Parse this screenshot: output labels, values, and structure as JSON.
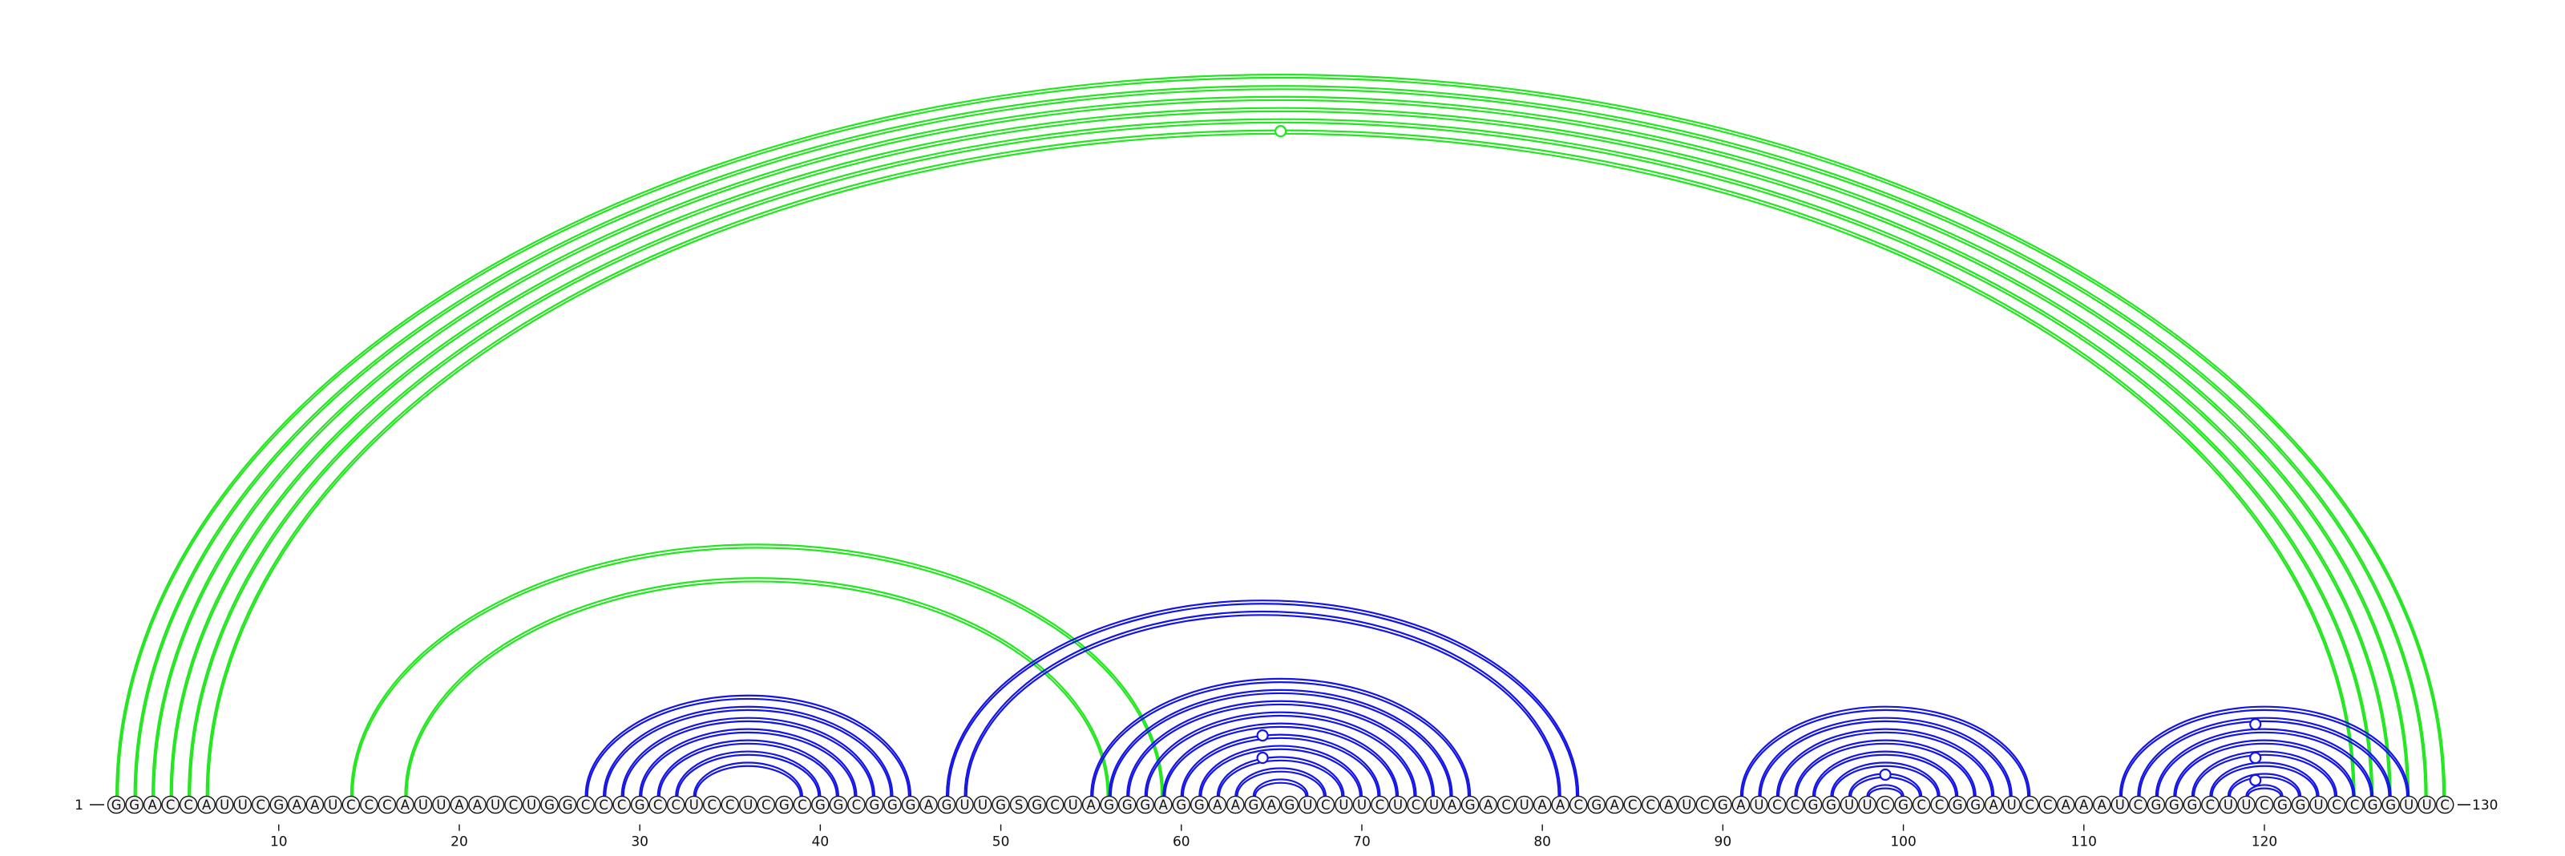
{
  "sequence": "GGACCAUUCGAAUCCCAUUAAUCUGGCCCGCCUCCUCGCGGCGGGAGUUGSGCUAGGGAGGAAGAGUCUUCUCUAGACUAACGACCAUCGAUCCGGUUCGCCGGAUCCAAAUCGGGCUUCGGUCCGGUUC",
  "start_label": "1",
  "end_label": "130",
  "ticks": [
    10,
    20,
    30,
    40,
    50,
    60,
    70,
    80,
    90,
    100,
    110,
    120
  ],
  "colors": {
    "green": "#22e61e",
    "blue": "#1414e6",
    "nucleotide_fill": "#f2f2f2",
    "nucleotide_stroke": "#111111",
    "text": "#111111"
  },
  "arcs": [
    {
      "i": 1,
      "j": 130,
      "color": "green"
    },
    {
      "i": 2,
      "j": 129,
      "color": "green"
    },
    {
      "i": 3,
      "j": 128,
      "color": "green"
    },
    {
      "i": 4,
      "j": 127,
      "color": "green"
    },
    {
      "i": 5,
      "j": 126,
      "color": "green"
    },
    {
      "i": 6,
      "j": 125,
      "color": "green"
    },
    {
      "i": 14,
      "j": 59,
      "color": "green"
    },
    {
      "i": 17,
      "j": 56,
      "color": "green"
    },
    {
      "i": 27,
      "j": 45,
      "color": "blue"
    },
    {
      "i": 28,
      "j": 44,
      "color": "blue"
    },
    {
      "i": 29,
      "j": 43,
      "color": "blue"
    },
    {
      "i": 30,
      "j": 42,
      "color": "blue"
    },
    {
      "i": 31,
      "j": 41,
      "color": "blue"
    },
    {
      "i": 32,
      "j": 40,
      "color": "blue"
    },
    {
      "i": 33,
      "j": 39,
      "color": "blue"
    },
    {
      "i": 47,
      "j": 82,
      "color": "blue"
    },
    {
      "i": 48,
      "j": 81,
      "color": "blue"
    },
    {
      "i": 55,
      "j": 76,
      "color": "blue"
    },
    {
      "i": 56,
      "j": 75,
      "color": "blue"
    },
    {
      "i": 57,
      "j": 74,
      "color": "blue"
    },
    {
      "i": 58,
      "j": 73,
      "color": "blue"
    },
    {
      "i": 59,
      "j": 72,
      "color": "blue"
    },
    {
      "i": 60,
      "j": 71,
      "color": "blue"
    },
    {
      "i": 61,
      "j": 70,
      "color": "blue"
    },
    {
      "i": 62,
      "j": 69,
      "color": "blue"
    },
    {
      "i": 63,
      "j": 68,
      "color": "blue"
    },
    {
      "i": 64,
      "j": 67,
      "color": "blue"
    },
    {
      "i": 91,
      "j": 107,
      "color": "blue"
    },
    {
      "i": 92,
      "j": 106,
      "color": "blue"
    },
    {
      "i": 93,
      "j": 105,
      "color": "blue"
    },
    {
      "i": 94,
      "j": 104,
      "color": "blue"
    },
    {
      "i": 95,
      "j": 103,
      "color": "blue"
    },
    {
      "i": 96,
      "j": 102,
      "color": "blue"
    },
    {
      "i": 97,
      "j": 101,
      "color": "blue"
    },
    {
      "i": 98,
      "j": 100,
      "color": "blue"
    },
    {
      "i": 112,
      "j": 128,
      "color": "blue"
    },
    {
      "i": 113,
      "j": 127,
      "color": "blue"
    },
    {
      "i": 114,
      "j": 126,
      "color": "blue"
    },
    {
      "i": 115,
      "j": 125,
      "color": "blue"
    },
    {
      "i": 116,
      "j": 124,
      "color": "blue"
    },
    {
      "i": 117,
      "j": 123,
      "color": "blue"
    },
    {
      "i": 118,
      "j": 122,
      "color": "blue"
    },
    {
      "i": 119,
      "j": 121,
      "color": "blue"
    }
  ],
  "markers": [
    {
      "i": 6,
      "j": 125,
      "color": "green"
    },
    {
      "i": 59,
      "j": 70,
      "color": "blue"
    },
    {
      "i": 61,
      "j": 68,
      "color": "blue"
    },
    {
      "i": 97,
      "j": 101,
      "color": "blue"
    },
    {
      "i": 113,
      "j": 126,
      "color": "blue"
    },
    {
      "i": 116,
      "j": 123,
      "color": "blue"
    },
    {
      "i": 118,
      "j": 121,
      "color": "blue"
    }
  ]
}
